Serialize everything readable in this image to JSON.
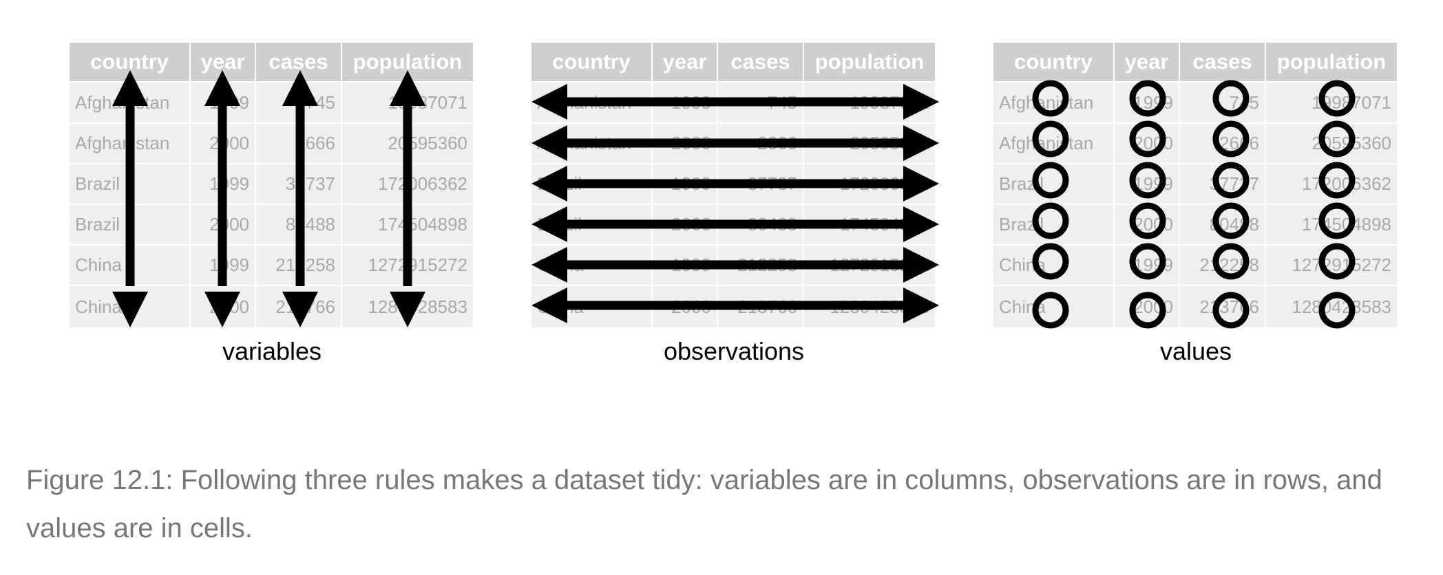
{
  "table": {
    "headers": [
      "country",
      "year",
      "cases",
      "population"
    ],
    "rows": [
      [
        "Afghanistan",
        "1999",
        "745",
        "19987071"
      ],
      [
        "Afghanistan",
        "2000",
        "2666",
        "20595360"
      ],
      [
        "Brazil",
        "1999",
        "37737",
        "172006362"
      ],
      [
        "Brazil",
        "2000",
        "80488",
        "174504898"
      ],
      [
        "China",
        "1999",
        "212258",
        "1272915272"
      ],
      [
        "China",
        "2000",
        "213766",
        "1280428583"
      ]
    ]
  },
  "panels": [
    {
      "label": "variables",
      "overlay": "vertical-arrows"
    },
    {
      "label": "observations",
      "overlay": "horizontal-arrows"
    },
    {
      "label": "values",
      "overlay": "circles"
    }
  ],
  "caption": {
    "text": "Figure 12.1: Following three rules makes a dataset tidy: variables are in columns, observations are in rows, and values are in cells."
  },
  "colors": {
    "header_bg": "#cfcfcf",
    "cell_bg": "#efefef",
    "cell_text": "#a9a9a9",
    "mark": "#000000",
    "caption": "#777777"
  }
}
